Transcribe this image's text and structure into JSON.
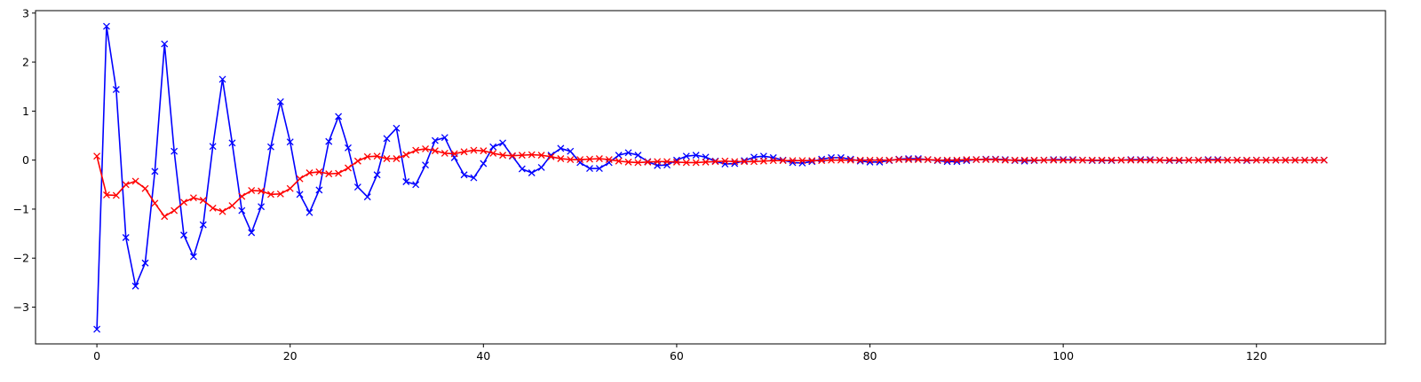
{
  "chart_data": {
    "type": "line",
    "title": "",
    "xlabel": "",
    "ylabel": "",
    "xlim": [
      -6.35,
      133.35
    ],
    "ylim": [
      -3.75,
      3.05
    ],
    "x_ticks": [
      0,
      20,
      40,
      60,
      80,
      100,
      120
    ],
    "y_ticks": [
      -3,
      -2,
      -1,
      0,
      1,
      2,
      3
    ],
    "x_tick_labels": [
      "0",
      "20",
      "40",
      "60",
      "80",
      "100",
      "120"
    ],
    "y_tick_labels": [
      "−3",
      "−2",
      "−1",
      "0",
      "1",
      "2",
      "3"
    ],
    "grid": false,
    "legend": "none",
    "marker": "x",
    "series": [
      {
        "color": "#0000ff",
        "values": [
          -3.45,
          2.73,
          1.44,
          -1.58,
          -2.57,
          -2.1,
          -0.23,
          2.37,
          0.18,
          -1.53,
          -1.97,
          -1.32,
          0.28,
          1.65,
          0.35,
          -1.03,
          -1.48,
          -0.95,
          0.27,
          1.19,
          0.37,
          -0.7,
          -1.07,
          -0.61,
          0.38,
          0.89,
          0.25,
          -0.55,
          -0.75,
          -0.3,
          0.44,
          0.65,
          -0.44,
          -0.5,
          -0.1,
          0.4,
          0.46,
          0.05,
          -0.3,
          -0.36,
          -0.07,
          0.27,
          0.35,
          0.08,
          -0.18,
          -0.26,
          -0.15,
          0.1,
          0.24,
          0.18,
          -0.05,
          -0.17,
          -0.17,
          -0.05,
          0.1,
          0.15,
          0.1,
          -0.03,
          -0.11,
          -0.1,
          0.0,
          0.08,
          0.1,
          0.06,
          -0.02,
          -0.08,
          -0.07,
          -0.01,
          0.06,
          0.08,
          0.05,
          0.0,
          -0.05,
          -0.06,
          -0.03,
          0.02,
          0.05,
          0.05,
          0.02,
          -0.02,
          -0.04,
          -0.04,
          -0.01,
          0.02,
          0.03,
          0.03,
          0.01,
          -0.01,
          -0.03,
          -0.03,
          -0.01,
          0.01,
          0.02,
          0.02,
          0.01,
          -0.01,
          -0.02,
          -0.01,
          0.0,
          0.01,
          0.01,
          0.01,
          0.0,
          -0.01,
          -0.01,
          -0.01,
          0.0,
          0.01,
          0.01,
          0.01,
          0.0,
          -0.01,
          -0.01,
          0.0,
          0.0,
          0.01,
          0.01,
          0.0,
          0.0,
          -0.01,
          0.0,
          0.0,
          0.0,
          0.0,
          0.0,
          0.0,
          0.0,
          0.0
        ]
      },
      {
        "color": "#ff0000",
        "values": [
          0.08,
          -0.71,
          -0.72,
          -0.5,
          -0.43,
          -0.58,
          -0.88,
          -1.15,
          -1.03,
          -0.86,
          -0.77,
          -0.82,
          -0.98,
          -1.05,
          -0.93,
          -0.74,
          -0.62,
          -0.63,
          -0.7,
          -0.69,
          -0.58,
          -0.38,
          -0.26,
          -0.24,
          -0.28,
          -0.27,
          -0.16,
          -0.02,
          0.07,
          0.08,
          0.03,
          0.03,
          0.11,
          0.2,
          0.23,
          0.19,
          0.14,
          0.13,
          0.17,
          0.2,
          0.19,
          0.14,
          0.1,
          0.09,
          0.1,
          0.11,
          0.1,
          0.07,
          0.03,
          0.01,
          0.01,
          0.02,
          0.03,
          0.01,
          -0.02,
          -0.04,
          -0.05,
          -0.04,
          -0.03,
          -0.03,
          -0.04,
          -0.05,
          -0.05,
          -0.04,
          -0.03,
          -0.02,
          -0.03,
          -0.03,
          -0.03,
          -0.02,
          -0.01,
          -0.01,
          -0.01,
          -0.01,
          -0.01,
          -0.01,
          0.0,
          0.0,
          0.0,
          0.0,
          0.0,
          0.0,
          0.0,
          0.01,
          0.01,
          0.01,
          0.01,
          0.0,
          0.0,
          0.0,
          0.01,
          0.01,
          0.01,
          0.01,
          0.0,
          0.0,
          0.0,
          0.0,
          0.0,
          0.0,
          0.0,
          0.0,
          0.0,
          0.0,
          0.0,
          0.0,
          0.0,
          0.0,
          0.0,
          0.0,
          0.0,
          0.0,
          0.0,
          0.0,
          0.0,
          0.0,
          0.0,
          0.0,
          0.0,
          0.0,
          0.0,
          0.0,
          0.0,
          0.0,
          0.0,
          0.0,
          0.0,
          0.0
        ]
      }
    ]
  }
}
